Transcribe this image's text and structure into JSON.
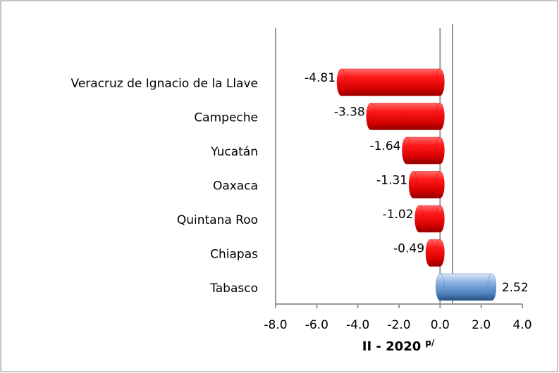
{
  "chart_data": {
    "type": "bar",
    "orientation": "horizontal",
    "categories": [
      "Veracruz de Ignacio de la Llave",
      "Campeche",
      "Yucatán",
      "Oaxaca",
      "Quintana Roo",
      "Chiapas",
      "Tabasco"
    ],
    "values": [
      -4.81,
      -3.38,
      -1.64,
      -1.31,
      -1.02,
      -0.49,
      2.52
    ],
    "negative_color": "#e60000",
    "positive_color": "#4f81bd",
    "xlim": [
      -8,
      4
    ],
    "xticks": [
      {
        "value": -8,
        "label": "-8.0"
      },
      {
        "value": -6,
        "label": "-6.0"
      },
      {
        "value": -4,
        "label": "-4.0"
      },
      {
        "value": -2,
        "label": "-2.0"
      },
      {
        "value": 0,
        "label": "0.0"
      },
      {
        "value": 2,
        "label": "2.0"
      },
      {
        "value": 4,
        "label": "4.0"
      }
    ],
    "x_label": "II - 2020",
    "x_label_superscript": "p/"
  }
}
